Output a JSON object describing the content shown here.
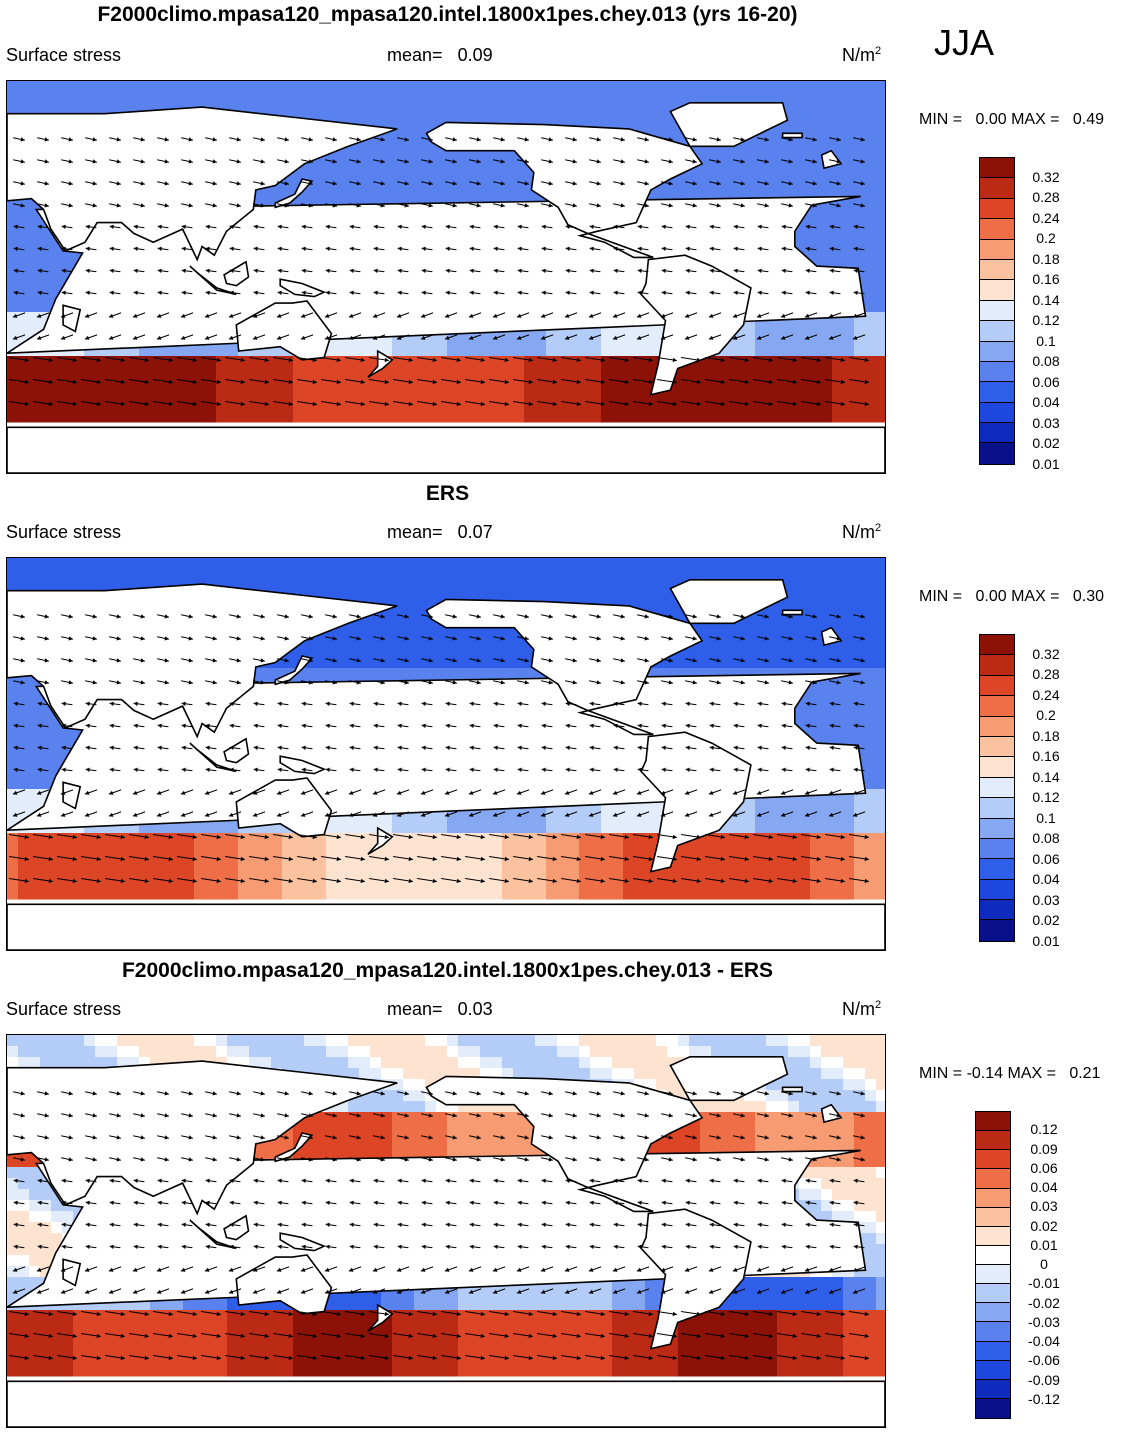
{
  "season": "JJA",
  "palettes": {
    "abs": [
      "#08108a",
      "#0f2bbd",
      "#1d47dd",
      "#2f5fe8",
      "#5a82ee",
      "#86a8f3",
      "#b3ccf8",
      "#e2ecfb",
      "#fde3d0",
      "#fbc2a0",
      "#f79b73",
      "#ee6e47",
      "#dd4527",
      "#bb2a14",
      "#8c1208"
    ],
    "diff": [
      "#08108a",
      "#0f2bbd",
      "#1d47dd",
      "#2f5fe8",
      "#5a82ee",
      "#86a8f3",
      "#b3ccf8",
      "#e2ecfb",
      "#ffffff",
      "#fde3d0",
      "#fbc2a0",
      "#f79b73",
      "#ee6e47",
      "#dd4527",
      "#bb2a14",
      "#8c1208"
    ]
  },
  "panels": [
    {
      "id": "model",
      "title": "F2000climo.mpasa120_mpasa120.intel.1800x1pes.chey.013 (yrs 16-20)",
      "variable": "Surface stress",
      "mean_label": "mean=",
      "mean_value": "0.09",
      "units_base": "N/m",
      "units_exp": "2",
      "min_label": "MIN =",
      "min_value": "0.00",
      "max_label": "MAX =",
      "max_value": "0.49",
      "levels": [
        "0.32",
        "0.28",
        "0.24",
        "0.2",
        "0.18",
        "0.16",
        "0.14",
        "0.12",
        "0.1",
        "0.08",
        "0.06",
        "0.04",
        "0.03",
        "0.02",
        "0.01"
      ],
      "palette": "abs",
      "field": "model"
    },
    {
      "id": "obs",
      "title": "ERS",
      "variable": "Surface stress",
      "mean_label": "mean=",
      "mean_value": "0.07",
      "units_base": "N/m",
      "units_exp": "2",
      "min_label": "MIN =",
      "min_value": "0.00",
      "max_label": "MAX =",
      "max_value": "0.30",
      "levels": [
        "0.32",
        "0.28",
        "0.24",
        "0.2",
        "0.18",
        "0.16",
        "0.14",
        "0.12",
        "0.1",
        "0.08",
        "0.06",
        "0.04",
        "0.03",
        "0.02",
        "0.01"
      ],
      "palette": "abs",
      "field": "obs"
    },
    {
      "id": "diff",
      "title": "F2000climo.mpasa120_mpasa120.intel.1800x1pes.chey.013 - ERS",
      "variable": "Surface stress",
      "mean_label": "mean=",
      "mean_value": "0.03",
      "units_base": "N/m",
      "units_exp": "2",
      "min_label": "MIN =",
      "min_value": "-0.14",
      "max_label": "MAX =",
      "max_value": "0.21",
      "levels": [
        "0.12",
        "0.09",
        "0.06",
        "0.04",
        "0.03",
        "0.02",
        "0.01",
        "0",
        "-0.01",
        "-0.02",
        "-0.03",
        "-0.04",
        "-0.06",
        "-0.09",
        "-0.12"
      ],
      "palette": "diff",
      "field": "diff"
    }
  ]
}
